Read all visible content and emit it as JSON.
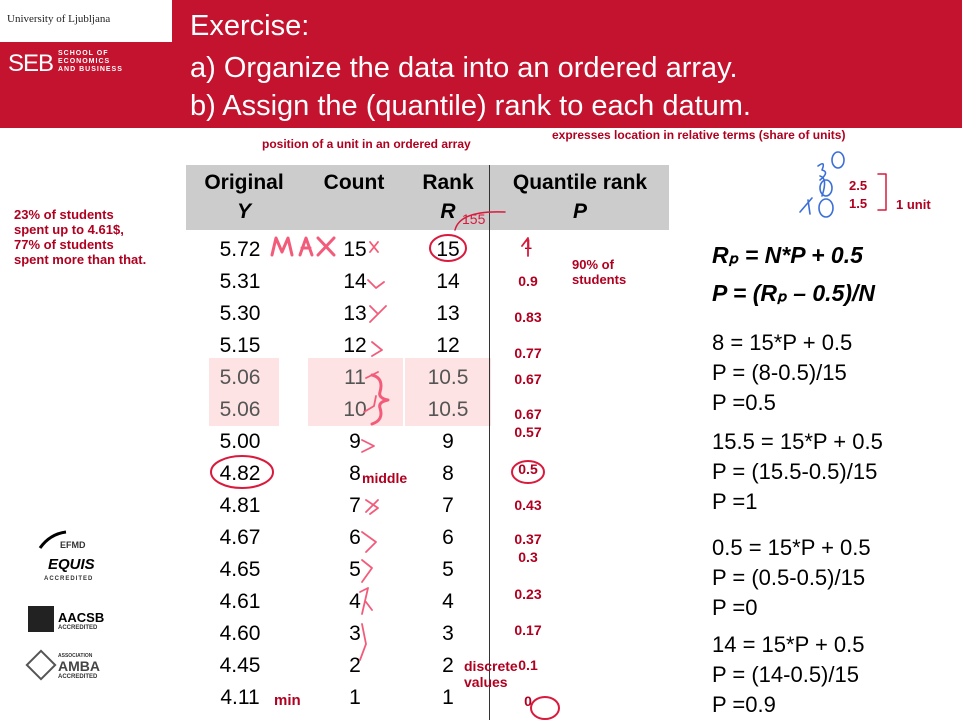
{
  "header": {
    "university": "University of Ljubljana",
    "school_abbr": "SEB",
    "school_sub": [
      "SCHOOL OF",
      "ECONOMICS",
      "AND BUSINESS"
    ],
    "title_lines": [
      "Exercise:",
      "a) Organize the data into an ordered array.",
      "b) Assign the (quantile) rank to each datum."
    ]
  },
  "annotations": {
    "position_note": "position of a unit in an ordered array",
    "location_note": "expresses location in relative terms (share of units)",
    "students_note": [
      "23% of students",
      "spent up to 4.61$,",
      "77% of students",
      "spent more than that."
    ],
    "percent_note": [
      "90% of",
      "students"
    ],
    "max_label": "max",
    "min_label": "min",
    "middle_label": "middle",
    "discrete_label": [
      "discrete",
      "values"
    ],
    "unit_scale": [
      "2.5",
      "1.5",
      "1 unit"
    ]
  },
  "table": {
    "headers": [
      {
        "main": "Original",
        "sub": "Y"
      },
      {
        "main": "Count",
        "sub": ""
      },
      {
        "main": "Rank",
        "sub": "R"
      },
      {
        "main": "Quantile rank",
        "sub": "P"
      }
    ],
    "rows": [
      {
        "y": "5.72",
        "count": "15",
        "rank": "15",
        "p": "1"
      },
      {
        "y": "5.31",
        "count": "14",
        "rank": "14",
        "p": "0.9"
      },
      {
        "y": "5.30",
        "count": "13",
        "rank": "13",
        "p": "0.83"
      },
      {
        "y": "5.15",
        "count": "12",
        "rank": "12",
        "p": "0.77"
      },
      {
        "y": "5.06",
        "count": "11",
        "rank": "10.5",
        "p": "0.67"
      },
      {
        "y": "5.06",
        "count": "10",
        "rank": "10.5",
        "p": "0.67"
      },
      {
        "y": "5.00",
        "count": "9",
        "rank": "9",
        "p": "0.57"
      },
      {
        "y": "4.82",
        "count": "8",
        "rank": "8",
        "p": "0.5"
      },
      {
        "y": "4.81",
        "count": "7",
        "rank": "7",
        "p": "0.43"
      },
      {
        "y": "4.67",
        "count": "6",
        "rank": "6",
        "p": "0.37"
      },
      {
        "y": "4.65",
        "count": "5",
        "rank": "5",
        "p": "0.3"
      },
      {
        "y": "4.61",
        "count": "4",
        "rank": "4",
        "p": "0.23"
      },
      {
        "y": "4.60",
        "count": "3",
        "rank": "3",
        "p": "0.17"
      },
      {
        "y": "4.45",
        "count": "2",
        "rank": "2",
        "p": "0.1"
      },
      {
        "y": "4.11",
        "count": "1",
        "rank": "1",
        "p": "0"
      }
    ]
  },
  "formulas": {
    "main": [
      "Rₚ = N*P + 0.5",
      "P = (Rₚ – 0.5)/N"
    ],
    "examples": [
      [
        "8 = 15*P + 0.5",
        "P = (8-0.5)/15",
        "P =0.5"
      ],
      [
        "15.5 = 15*P + 0.5",
        "P = (15.5-0.5)/15",
        "P =1"
      ],
      [
        "0.5 = 15*P + 0.5",
        "P = (0.5-0.5)/15",
        "P =0"
      ],
      [
        "14 = 15*P + 0.5",
        "P = (14-0.5)/15",
        "P =0.9"
      ]
    ]
  },
  "accreditations": {
    "equis": [
      "EFMD",
      "EQUIS",
      "ACCREDITED"
    ],
    "aacsb": [
      "AACSB",
      "ACCREDITED"
    ],
    "amba": [
      "ASSOCIATION",
      "AMBA",
      "ACCREDITED"
    ]
  },
  "colors": {
    "brand": "#c4132f",
    "ink": "#b00020",
    "header_gray": "#cccccc"
  }
}
